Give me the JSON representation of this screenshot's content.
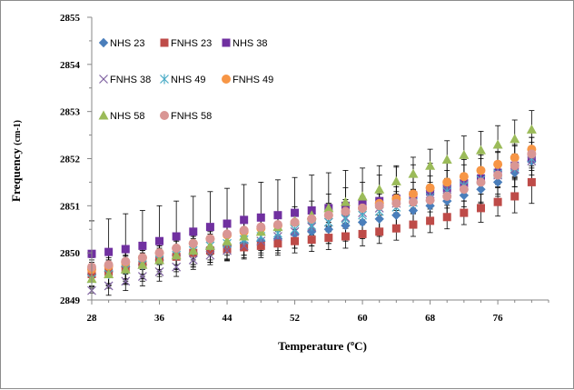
{
  "chart_data": {
    "type": "scatter",
    "title": "",
    "xlabel": "Temperature",
    "xlabel_unit": "(ºC)",
    "ylabel": "Frequency",
    "ylabel_unit": "(cm-1)",
    "xlim": [
      28,
      82
    ],
    "ylim": [
      2849,
      2855
    ],
    "x_ticks": [
      "28",
      "36",
      "44",
      "52",
      "60",
      "68",
      "76"
    ],
    "y_ticks": [
      "2849",
      "2850",
      "2851",
      "2852",
      "2853",
      "2854",
      "2855"
    ],
    "grid": false,
    "legend_position": "top-right",
    "x": [
      28,
      30,
      32,
      34,
      36,
      38,
      40,
      42,
      44,
      46,
      48,
      50,
      52,
      54,
      56,
      58,
      60,
      62,
      64,
      66,
      68,
      70,
      72,
      74,
      76,
      78,
      80
    ],
    "series": [
      {
        "name": "NHS 23",
        "marker": "diamond",
        "color": "#4a7ebb",
        "values": [
          2849.55,
          2849.6,
          2849.7,
          2849.75,
          2849.85,
          2849.95,
          2850.0,
          2850.1,
          2850.15,
          2850.2,
          2850.25,
          2850.3,
          2850.4,
          2850.45,
          2850.5,
          2850.58,
          2850.65,
          2850.72,
          2850.8,
          2850.9,
          2851.0,
          2851.1,
          2851.22,
          2851.35,
          2851.5,
          2851.7,
          2851.95
        ],
        "error": [
          0.3,
          0.3,
          0.3,
          0.3,
          0.3,
          0.3,
          0.3,
          0.3,
          0.3,
          0.3,
          0.3,
          0.3,
          0.3,
          0.3,
          0.3,
          0.3,
          0.3,
          0.3,
          0.3,
          0.3,
          0.3,
          0.3,
          0.3,
          0.3,
          0.3,
          0.3,
          0.3
        ]
      },
      {
        "name": "FNHS 23",
        "marker": "square",
        "color": "#be4b48",
        "values": [
          2849.55,
          2849.6,
          2849.68,
          2849.75,
          2849.85,
          2849.92,
          2850.0,
          2850.05,
          2850.08,
          2850.12,
          2850.15,
          2850.2,
          2850.25,
          2850.28,
          2850.32,
          2850.35,
          2850.4,
          2850.45,
          2850.52,
          2850.6,
          2850.68,
          2850.76,
          2850.85,
          2850.95,
          2851.08,
          2851.2,
          2851.5
        ],
        "error": [
          0.25,
          0.25,
          0.25,
          0.25,
          0.25,
          0.25,
          0.25,
          0.25,
          0.25,
          0.25,
          0.25,
          0.25,
          0.25,
          0.25,
          0.25,
          0.25,
          0.25,
          0.25,
          0.25,
          0.25,
          0.25,
          0.25,
          0.25,
          0.3,
          0.3,
          0.35,
          0.45
        ]
      },
      {
        "name": "NHS 38",
        "marker": "square",
        "color": "#7030a0",
        "values": [
          2849.98,
          2850.02,
          2850.08,
          2850.15,
          2850.25,
          2850.35,
          2850.45,
          2850.55,
          2850.62,
          2850.7,
          2850.75,
          2850.8,
          2850.85,
          2850.9,
          2850.95,
          2851.0,
          2851.05,
          2851.1,
          2851.15,
          2851.22,
          2851.3,
          2851.38,
          2851.48,
          2851.58,
          2851.7,
          2851.85,
          2852.0
        ],
        "error": [
          0.7,
          0.7,
          0.75,
          0.75,
          0.75,
          0.75,
          0.75,
          0.75,
          0.75,
          0.75,
          0.75,
          0.75,
          0.75,
          0.75,
          0.75,
          0.75,
          0.75,
          0.75,
          0.7,
          0.65,
          0.6,
          0.55,
          0.5,
          0.5,
          0.45,
          0.45,
          0.45
        ]
      },
      {
        "name": "FNHS 38",
        "marker": "x",
        "color": "#8064a2",
        "values": [
          2849.2,
          2849.3,
          2849.4,
          2849.5,
          2849.6,
          2849.7,
          2849.85,
          2849.95,
          2850.05,
          2850.15,
          2850.25,
          2850.35,
          2850.45,
          2850.55,
          2850.65,
          2850.75,
          2850.85,
          2850.95,
          2851.05,
          2851.15,
          2851.25,
          2851.35,
          2851.45,
          2851.55,
          2851.65,
          2851.78,
          2851.95
        ],
        "error": [
          0.2,
          0.2,
          0.2,
          0.2,
          0.2,
          0.2,
          0.2,
          0.2,
          0.2,
          0.2,
          0.2,
          0.2,
          0.2,
          0.2,
          0.2,
          0.2,
          0.2,
          0.2,
          0.2,
          0.2,
          0.2,
          0.2,
          0.2,
          0.2,
          0.2,
          0.2,
          0.2
        ]
      },
      {
        "name": "NHS 49",
        "marker": "star",
        "color": "#4bacc6",
        "values": [
          2849.45,
          2849.55,
          2849.65,
          2849.75,
          2849.85,
          2849.95,
          2850.05,
          2850.15,
          2850.2,
          2850.28,
          2850.35,
          2850.42,
          2850.5,
          2850.58,
          2850.65,
          2850.72,
          2850.8,
          2850.88,
          2850.97,
          2851.07,
          2851.18,
          2851.3,
          2851.42,
          2851.55,
          2851.68,
          2851.82,
          2852.0
        ],
        "error": [
          0.2,
          0.2,
          0.2,
          0.2,
          0.2,
          0.2,
          0.2,
          0.2,
          0.2,
          0.2,
          0.2,
          0.2,
          0.2,
          0.2,
          0.2,
          0.2,
          0.2,
          0.2,
          0.2,
          0.2,
          0.2,
          0.2,
          0.2,
          0.2,
          0.2,
          0.2,
          0.2
        ]
      },
      {
        "name": "FNHS 49",
        "marker": "circle",
        "color": "#f79646",
        "values": [
          2849.65,
          2849.72,
          2849.8,
          2849.9,
          2850.0,
          2850.1,
          2850.2,
          2850.3,
          2850.38,
          2850.45,
          2850.52,
          2850.58,
          2850.65,
          2850.72,
          2850.8,
          2850.88,
          2850.95,
          2851.05,
          2851.15,
          2851.25,
          2851.38,
          2851.5,
          2851.62,
          2851.75,
          2851.88,
          2852.02,
          2852.2
        ],
        "error": [
          0.25,
          0.25,
          0.25,
          0.25,
          0.25,
          0.25,
          0.25,
          0.25,
          0.25,
          0.25,
          0.25,
          0.25,
          0.25,
          0.25,
          0.25,
          0.25,
          0.25,
          0.25,
          0.25,
          0.25,
          0.25,
          0.25,
          0.25,
          0.25,
          0.25,
          0.25,
          0.25
        ]
      },
      {
        "name": "NHS 58",
        "marker": "triangle",
        "color": "#9bbb59",
        "values": [
          2849.45,
          2849.55,
          2849.65,
          2849.75,
          2849.85,
          2849.95,
          2850.05,
          2850.15,
          2850.25,
          2850.35,
          2850.45,
          2850.55,
          2850.68,
          2850.8,
          2850.95,
          2851.08,
          2851.2,
          2851.35,
          2851.52,
          2851.68,
          2851.85,
          2851.98,
          2852.08,
          2852.18,
          2852.3,
          2852.42,
          2852.62
        ],
        "error": [
          0.3,
          0.3,
          0.3,
          0.3,
          0.3,
          0.3,
          0.3,
          0.3,
          0.3,
          0.3,
          0.3,
          0.3,
          0.3,
          0.3,
          0.3,
          0.3,
          0.3,
          0.3,
          0.3,
          0.35,
          0.35,
          0.4,
          0.4,
          0.4,
          0.4,
          0.4,
          0.4
        ]
      },
      {
        "name": "FNHS 58",
        "marker": "circle",
        "color": "#d99694",
        "values": [
          2849.7,
          2849.75,
          2849.82,
          2849.9,
          2850.0,
          2850.1,
          2850.2,
          2850.3,
          2850.4,
          2850.48,
          2850.55,
          2850.6,
          2850.65,
          2850.72,
          2850.8,
          2850.88,
          2850.95,
          2851.0,
          2851.05,
          2851.08,
          2851.12,
          2851.2,
          2851.35,
          2851.5,
          2851.65,
          2851.85,
          2852.1
        ],
        "error": [
          0.25,
          0.25,
          0.25,
          0.25,
          0.25,
          0.25,
          0.25,
          0.25,
          0.25,
          0.25,
          0.25,
          0.25,
          0.25,
          0.25,
          0.25,
          0.25,
          0.25,
          0.25,
          0.25,
          0.25,
          0.25,
          0.25,
          0.25,
          0.25,
          0.25,
          0.25,
          0.25
        ]
      }
    ]
  }
}
